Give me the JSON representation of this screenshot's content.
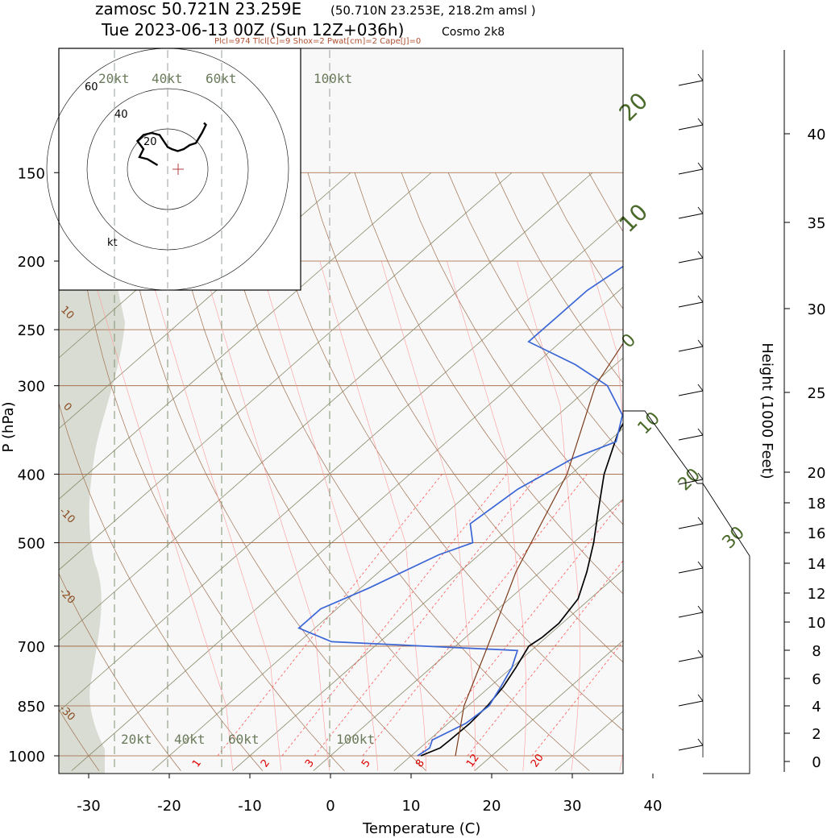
{
  "header": {
    "station": "zamosc 50.721N 23.259E",
    "grid_point": "(50.710N 23.253E, 218.2m amsl )",
    "valid_time": "Tue 2023-06-13 00Z (Sun 12Z+036h)",
    "model": "Cosmo 2k8",
    "indices": "Plcl=974 Tlcl[C]=9 Shox=2 Pwat[cm]=2 Cape[J]=0"
  },
  "chart_data": {
    "type": "line",
    "subtype": "skew-T log-P sounding",
    "xlabel": "Temperature (C)",
    "ylabel": "P (hPa)",
    "y2label": "Height (1000 Feet)",
    "xlim": [
      -34,
      46
    ],
    "ylim": [
      1050,
      150
    ],
    "x_ticks": [
      -30,
      -20,
      -10,
      0,
      10,
      20,
      30,
      40
    ],
    "p_ticks": [
      150,
      200,
      250,
      300,
      400,
      500,
      700,
      850,
      1000
    ],
    "height_ticks": [
      0,
      2,
      4,
      6,
      8,
      10,
      12,
      14,
      16,
      18,
      20,
      25,
      30,
      35,
      40
    ],
    "isotherm_labels": [
      "20",
      "10",
      "0",
      "10",
      "20",
      "30"
    ],
    "dry_adiabat_labels": [
      "10",
      "0",
      "-10",
      "-20",
      "-30"
    ],
    "mixing_ratio_labels": [
      "1",
      "2",
      "3",
      "5",
      "8",
      "12",
      "20"
    ],
    "series": [
      {
        "color": "#000000",
        "points": [
          [
            1000,
            11.2
          ],
          [
            975,
            12.5
          ],
          [
            950,
            12.6
          ],
          [
            900,
            12.7
          ],
          [
            850,
            12.4
          ],
          [
            800,
            11.7
          ],
          [
            750,
            10.5
          ],
          [
            700,
            9.1
          ],
          [
            680,
            9.5
          ],
          [
            650,
            9.6
          ],
          [
            600,
            8.5
          ],
          [
            550,
            5.8
          ],
          [
            500,
            2.5
          ],
          [
            450,
            -1.5
          ],
          [
            400,
            -5.9
          ],
          [
            350,
            -10.0
          ],
          [
            300,
            -13.5
          ],
          [
            270,
            -13.8
          ],
          [
            250,
            -13.7
          ],
          [
            230,
            -12.8
          ],
          [
            210,
            -9.5
          ],
          [
            190,
            -6.5
          ],
          [
            170,
            -3.0
          ],
          [
            160,
            -1.0
          ],
          [
            150,
            2.5
          ]
        ]
      },
      {
        "color": "#3b66d6",
        "points": [
          [
            1000,
            10.8
          ],
          [
            975,
            11.2
          ],
          [
            950,
            10.4
          ],
          [
            900,
            12.2
          ],
          [
            850,
            12.6
          ],
          [
            800,
            11.4
          ],
          [
            750,
            10.0
          ],
          [
            710,
            8.3
          ],
          [
            690,
            -16.0
          ],
          [
            660,
            -22.0
          ],
          [
            620,
            -22.0
          ],
          [
            580,
            -19.0
          ],
          [
            520,
            -15.0
          ],
          [
            500,
            -12.5
          ],
          [
            470,
            -15.5
          ],
          [
            420,
            -14.5
          ],
          [
            380,
            -12.0
          ],
          [
            360,
            -9.0
          ],
          [
            330,
            -12.0
          ],
          [
            300,
            -18.0
          ],
          [
            280,
            -25.0
          ],
          [
            260,
            -34.0
          ],
          [
            240,
            -34.0
          ],
          [
            220,
            -34.0
          ],
          [
            190,
            -32.0
          ],
          [
            170,
            -31.0
          ],
          [
            150,
            -31.0
          ]
        ]
      },
      {
        "color": "#7b3b1b",
        "points": [
          [
            1000,
            15.5
          ],
          [
            850,
            9.5
          ],
          [
            700,
            4.0
          ],
          [
            550,
            -3.0
          ],
          [
            400,
            -10.5
          ],
          [
            300,
            -19.5
          ],
          [
            200,
            -27.0
          ],
          [
            150,
            -30.0
          ]
        ]
      }
    ],
    "annotations": [
      "Cosmo 2k8"
    ],
    "hodograph": {
      "rings_kt": [
        20,
        40,
        60
      ],
      "unit": "kt",
      "speed_lines_kt": [
        "20kt",
        "40kt",
        "60kt",
        "100kt"
      ],
      "points": [
        [
          -5,
          -2
        ],
        [
          -10,
          -5
        ],
        [
          -14,
          -6
        ],
        [
          -12,
          -10
        ],
        [
          -15,
          -14
        ],
        [
          -12,
          -17
        ],
        [
          -8,
          -18
        ],
        [
          -4,
          -17
        ],
        [
          -2,
          -14
        ],
        [
          0,
          -11
        ],
        [
          2,
          -10
        ],
        [
          5,
          -9
        ],
        [
          8,
          -10
        ],
        [
          11,
          -12
        ],
        [
          14,
          -13
        ],
        [
          17,
          -18
        ],
        [
          19,
          -22
        ],
        [
          18,
          -23
        ]
      ]
    },
    "wind_barbs": "shown on right margin"
  },
  "colors": {
    "isotherm": "#8a8a6a",
    "dry_adiabat": "#a07050",
    "moist_adiabat": "#ff9999",
    "mixing_ratio": "#ff5555",
    "isobar": "#a0603a",
    "temperature": "#000000",
    "dewpoint": "#3b66d6",
    "parcel": "#7b3b1b",
    "terrain": "#d9dcd2",
    "isotherm_label": "#4a6a2a"
  }
}
